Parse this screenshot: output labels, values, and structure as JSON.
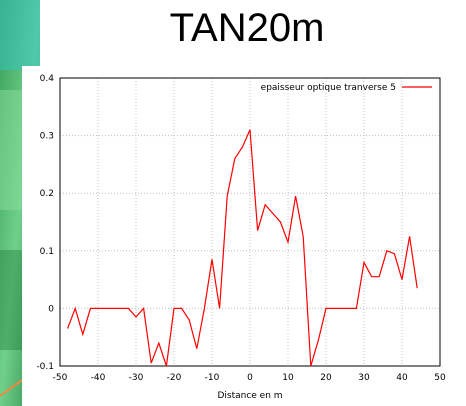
{
  "slide": {
    "title": "TAN20m"
  },
  "colors": {
    "series": "#ff0000",
    "grid": "#bfbfbf"
  },
  "chart_data": {
    "type": "line",
    "title": "",
    "xlabel": "Distance en m",
    "ylabel": "",
    "xlim": [
      -50,
      50
    ],
    "ylim": [
      -0.1,
      0.4
    ],
    "grid": true,
    "legend_position": "top-right",
    "x_ticks": [
      "-50",
      "-40",
      "-30",
      "-20",
      "-10",
      "0",
      "10",
      "20",
      "30",
      "40",
      "50"
    ],
    "y_ticks": [
      "-0.1",
      "0",
      "0.1",
      "0.2",
      "0.3",
      "0.4"
    ],
    "series": [
      {
        "name": "epaisseur optique tranverse 5",
        "color": "#ff0000",
        "x": [
          -48,
          -46,
          -44,
          -42,
          -40,
          -38,
          -36,
          -34,
          -32,
          -30,
          -28,
          -26,
          -24,
          -22,
          -20,
          -18,
          -16,
          -14,
          -12,
          -10,
          -8,
          -6,
          -4,
          -2,
          0,
          2,
          4,
          6,
          8,
          10,
          12,
          14,
          16,
          18,
          20,
          22,
          24,
          26,
          28,
          30,
          32,
          34,
          36,
          38,
          40,
          42,
          44
        ],
        "y": [
          -0.035,
          0.0,
          -0.045,
          0.0,
          0.0,
          0.0,
          0.0,
          0.0,
          0.0,
          -0.015,
          0.0,
          -0.095,
          -0.06,
          -0.115,
          0.0,
          0.0,
          -0.02,
          -0.07,
          0.0,
          0.085,
          0.0,
          0.195,
          0.26,
          0.28,
          0.31,
          0.135,
          0.18,
          0.165,
          0.15,
          0.115,
          0.195,
          0.125,
          -0.13,
          -0.055,
          0.0,
          0.0,
          0.0,
          0.0,
          0.0,
          0.08,
          0.055,
          0.055,
          0.1,
          0.095,
          0.05,
          0.125,
          0.035
        ]
      }
    ]
  }
}
